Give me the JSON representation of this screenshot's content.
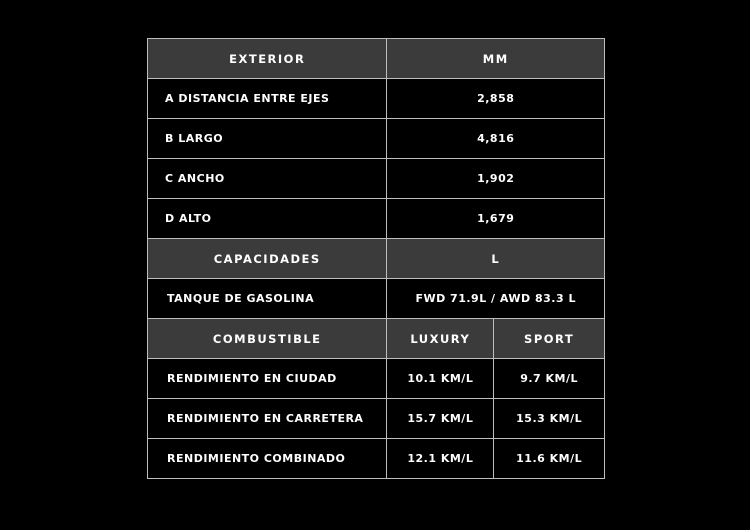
{
  "exterior": {
    "header": "EXTERIOR",
    "unit": "MM",
    "rows": [
      {
        "label": "A DISTANCIA ENTRE EJES",
        "value": "2,858"
      },
      {
        "label": "B LARGO",
        "value": "4,816"
      },
      {
        "label": "C ANCHO",
        "value": "1,902"
      },
      {
        "label": "D ALTO",
        "value": "1,679"
      }
    ]
  },
  "capacidades": {
    "header": "CAPACIDADES",
    "unit": "L",
    "rows": [
      {
        "label": "TANQUE DE GASOLINA",
        "value": "FWD 71.9L / AWD 83.3 L"
      }
    ]
  },
  "combustible": {
    "header": "COMBUSTIBLE",
    "col1": "LUXURY",
    "col2": "SPORT",
    "rows": [
      {
        "label": "RENDIMIENTO EN CIUDAD",
        "luxury": "10.1 KM/L",
        "sport": "9.7 KM/L"
      },
      {
        "label": "RENDIMIENTO EN CARRETERA",
        "luxury": "15.7 KM/L",
        "sport": "15.3 KM/L"
      },
      {
        "label": "RENDIMIENTO COMBINADO",
        "luxury": "12.1 KM/L",
        "sport": "11.6 KM/L"
      }
    ]
  }
}
